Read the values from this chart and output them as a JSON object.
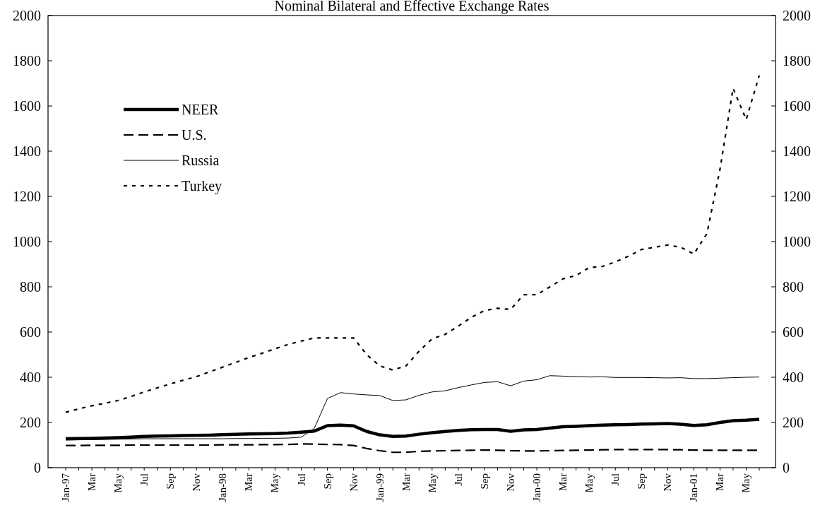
{
  "chart_data": {
    "type": "line",
    "title": "Nominal Bilateral and Effective Exchange Rates",
    "categories": [
      "Jan-97",
      null,
      "Mar",
      null,
      "May",
      null,
      "Jul",
      null,
      "Sep",
      null,
      "Nov",
      null,
      "Jan-98",
      null,
      "Mar",
      null,
      "May",
      null,
      "Jul",
      null,
      "Sep",
      null,
      "Nov",
      null,
      "Jan-99",
      null,
      "Mar",
      null,
      "May",
      null,
      "Jul",
      null,
      "Sep",
      null,
      "Nov",
      null,
      "Jan-00",
      null,
      "Mar",
      null,
      "May",
      null,
      "Jul",
      null,
      "Sep",
      null,
      "Nov",
      null,
      "Jan-01",
      null,
      "Mar",
      null,
      "May",
      null
    ],
    "series": [
      {
        "name": "NEER",
        "color": "#000000",
        "line_style": "solid",
        "values": [
          128,
          129,
          130,
          131,
          133,
          135,
          138,
          140,
          141,
          142,
          143,
          144,
          146,
          148,
          149,
          150,
          151,
          153,
          157,
          162,
          186,
          188,
          185,
          160,
          145,
          138,
          140,
          148,
          155,
          160,
          165,
          168,
          169,
          169,
          161,
          167,
          169,
          175,
          181,
          183,
          186,
          188,
          190,
          191,
          193,
          194,
          195,
          192,
          187,
          190,
          200,
          208,
          210,
          214
        ]
      },
      {
        "name": "U.S.",
        "color": "#000000",
        "line_style": "dashed",
        "values": [
          98,
          98,
          99,
          99,
          99,
          100,
          100,
          100,
          100,
          100,
          100,
          100,
          101,
          101,
          101,
          102,
          102,
          103,
          105,
          104,
          103,
          102,
          98,
          85,
          75,
          68,
          68,
          72,
          74,
          75,
          76,
          77,
          78,
          77,
          75,
          74,
          74,
          75,
          76,
          77,
          78,
          79,
          80,
          80,
          80,
          80,
          80,
          79,
          78,
          77,
          77,
          77,
          77,
          77
        ]
      },
      {
        "name": "Russia",
        "color": "#000000",
        "line_style": "solid",
        "values": [
          122,
          123,
          124,
          125,
          126,
          127,
          128,
          128,
          128,
          128,
          128,
          128,
          128,
          129,
          129,
          130,
          130,
          131,
          135,
          174,
          306,
          332,
          326,
          322,
          319,
          297,
          300,
          320,
          335,
          340,
          354,
          366,
          377,
          380,
          362,
          383,
          389,
          407,
          405,
          403,
          401,
          402,
          399,
          399,
          399,
          398,
          397,
          398,
          394,
          394,
          396,
          398,
          400,
          401
        ]
      },
      {
        "name": "Turkey",
        "color": "#000000",
        "line_style": "dotted",
        "values": [
          245,
          260,
          274,
          285,
          297,
          315,
          335,
          353,
          371,
          387,
          403,
          424,
          445,
          466,
          487,
          506,
          526,
          545,
          560,
          574,
          574,
          574,
          574,
          500,
          450,
          432,
          450,
          515,
          570,
          590,
          626,
          665,
          695,
          705,
          700,
          765,
          765,
          800,
          835,
          850,
          885,
          890,
          910,
          935,
          965,
          975,
          985,
          975,
          945,
          1035,
          1320,
          1678,
          1540,
          1735
        ]
      }
    ],
    "ylim": [
      0,
      2000
    ],
    "yticks": [
      0,
      200,
      400,
      600,
      800,
      1000,
      1200,
      1400,
      1600,
      1800,
      2000
    ],
    "y2lim": [
      0,
      2000
    ],
    "y2ticks": [
      0,
      200,
      400,
      600,
      800,
      1000,
      1200,
      1400,
      1600,
      1800,
      2000
    ],
    "legend": "top left",
    "grid": false
  }
}
